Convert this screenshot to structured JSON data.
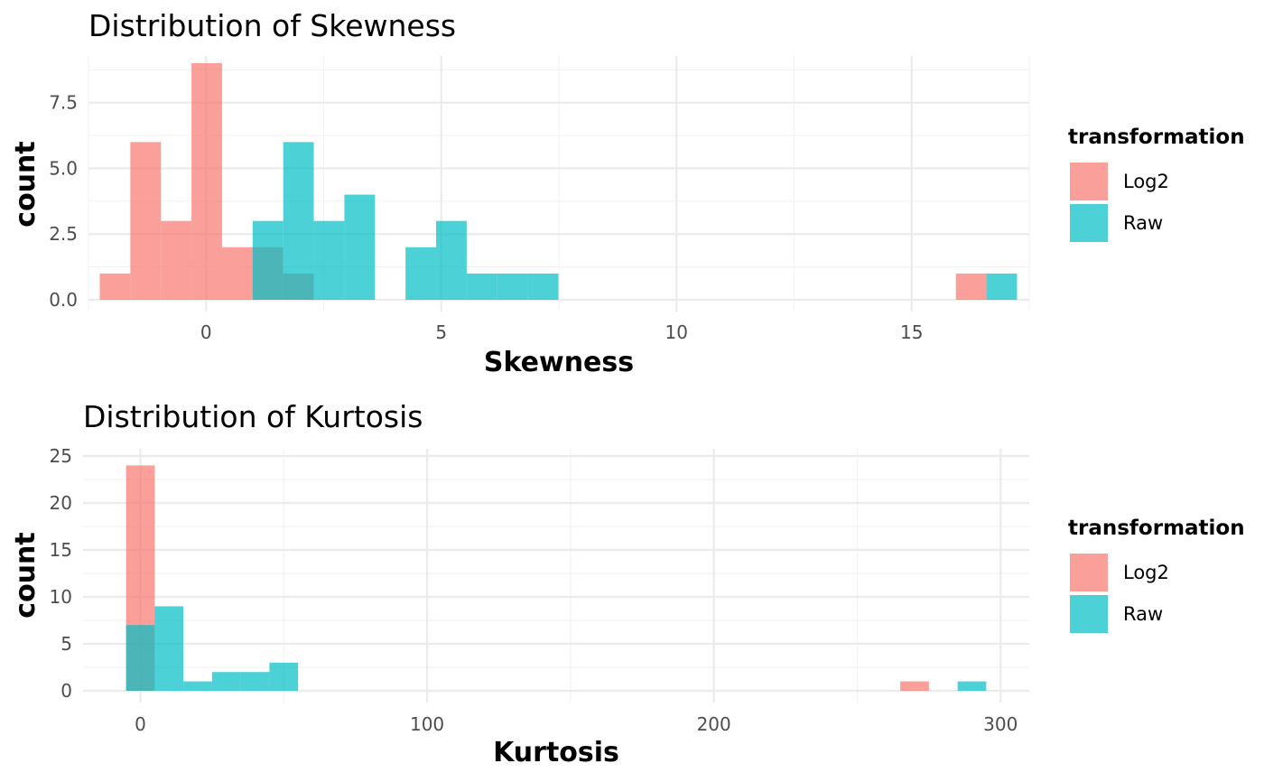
{
  "colors": {
    "log2": "#F8766D",
    "raw": "#00BFC4",
    "grid_major": "#ebebeb",
    "grid_minor": "#f3f3f3"
  },
  "chart_data": [
    {
      "type": "histogram",
      "title": "Distribution of Skewness",
      "xlabel": "Skewness",
      "ylabel": "count",
      "xlim": [
        -2.5,
        17.5
      ],
      "ylim": [
        0,
        9
      ],
      "x_ticks": [
        0,
        5,
        10,
        15
      ],
      "y_ticks": [
        0,
        2.5,
        5,
        7.5
      ],
      "y_tick_labels": [
        "0.0",
        "2.5",
        "5.0",
        "7.5"
      ],
      "grid": true,
      "legend": {
        "title": "transformation",
        "position": "right",
        "entries": [
          "Log2",
          "Raw"
        ]
      },
      "series": [
        {
          "name": "Log2",
          "bins": [
            {
              "x0": -2.26,
              "x1": -1.61,
              "count": 1
            },
            {
              "x0": -1.61,
              "x1": -0.96,
              "count": 6
            },
            {
              "x0": -0.96,
              "x1": -0.31,
              "count": 3
            },
            {
              "x0": -0.31,
              "x1": 0.34,
              "count": 9
            },
            {
              "x0": 0.34,
              "x1": 0.99,
              "count": 2
            },
            {
              "x0": 0.99,
              "x1": 1.64,
              "count": 2
            },
            {
              "x0": 1.64,
              "x1": 2.29,
              "count": 1
            },
            {
              "x0": 15.94,
              "x1": 16.59,
              "count": 1
            }
          ]
        },
        {
          "name": "Raw",
          "bins": [
            {
              "x0": 0.99,
              "x1": 1.64,
              "count": 3
            },
            {
              "x0": 1.64,
              "x1": 2.29,
              "count": 6
            },
            {
              "x0": 2.29,
              "x1": 2.94,
              "count": 3
            },
            {
              "x0": 2.94,
              "x1": 3.59,
              "count": 4
            },
            {
              "x0": 4.24,
              "x1": 4.89,
              "count": 2
            },
            {
              "x0": 4.89,
              "x1": 5.54,
              "count": 3
            },
            {
              "x0": 5.54,
              "x1": 6.19,
              "count": 1
            },
            {
              "x0": 6.19,
              "x1": 6.84,
              "count": 1
            },
            {
              "x0": 6.84,
              "x1": 7.49,
              "count": 1
            },
            {
              "x0": 16.59,
              "x1": 17.24,
              "count": 1
            }
          ]
        }
      ]
    },
    {
      "type": "histogram",
      "title": "Distribution of Kurtosis",
      "xlabel": "Kurtosis",
      "ylabel": "count",
      "xlim": [
        -20,
        310
      ],
      "ylim": [
        0,
        25
      ],
      "x_ticks": [
        0,
        100,
        200,
        300
      ],
      "y_ticks": [
        0,
        5,
        10,
        15,
        20,
        25
      ],
      "y_tick_labels": [
        "0",
        "5",
        "10",
        "15",
        "20",
        "25"
      ],
      "grid": true,
      "legend": {
        "title": "transformation",
        "position": "right",
        "entries": [
          "Log2",
          "Raw"
        ]
      },
      "series": [
        {
          "name": "Log2",
          "bins": [
            {
              "x0": -5,
              "x1": 5,
              "count": 24
            },
            {
              "x0": 265,
              "x1": 275,
              "count": 1
            }
          ]
        },
        {
          "name": "Raw",
          "bins": [
            {
              "x0": -5,
              "x1": 5,
              "count": 7
            },
            {
              "x0": 5,
              "x1": 15,
              "count": 9
            },
            {
              "x0": 15,
              "x1": 25,
              "count": 1
            },
            {
              "x0": 25,
              "x1": 35,
              "count": 2
            },
            {
              "x0": 35,
              "x1": 45,
              "count": 2
            },
            {
              "x0": 45,
              "x1": 55,
              "count": 3
            },
            {
              "x0": 285,
              "x1": 295,
              "count": 1
            }
          ]
        }
      ]
    }
  ]
}
